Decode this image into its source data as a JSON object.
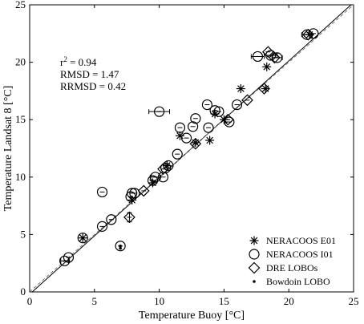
{
  "chart_data": {
    "type": "scatter",
    "xlabel": "Temperature Buoy [°C]",
    "ylabel": "Temperature Landsat 8 [°C]",
    "xlim": [
      0,
      25
    ],
    "ylim": [
      0,
      25
    ],
    "xticks": [
      0,
      5,
      10,
      15,
      20,
      25
    ],
    "yticks": [
      0,
      5,
      10,
      15,
      20,
      25
    ],
    "grid": false,
    "legend_position": "bottom-right",
    "stats": [
      "r² = 0.94",
      "RMSD = 1.47",
      "RRMSD = 0.42"
    ],
    "stats_parts": {
      "r2_prefix": "r",
      "r2_exp": "2",
      "r2_suffix": " = 0.94",
      "rmsd": "RMSD = 1.47",
      "rrmsd": "RRMSD = 0.42"
    },
    "lines": [
      {
        "kind": "fit",
        "style": "solid",
        "points": [
          [
            0,
            -0.2
          ],
          [
            25,
            25.2
          ]
        ]
      },
      {
        "kind": "one-to-one",
        "style": "dashed",
        "points": [
          [
            0,
            0
          ],
          [
            25,
            25
          ]
        ]
      }
    ],
    "series": [
      {
        "name": "NERACOOS E01",
        "marker": "asterisk",
        "points": [
          {
            "x": 4.1,
            "y": 4.7
          },
          {
            "x": 7.9,
            "y": 8.0
          },
          {
            "x": 9.5,
            "y": 9.5
          },
          {
            "x": 10.6,
            "y": 11.0
          },
          {
            "x": 11.6,
            "y": 13.6
          },
          {
            "x": 12.8,
            "y": 13.0
          },
          {
            "x": 13.9,
            "y": 13.2
          },
          {
            "x": 14.3,
            "y": 15.5
          },
          {
            "x": 15.0,
            "y": 15.0
          },
          {
            "x": 16.3,
            "y": 17.7
          },
          {
            "x": 18.2,
            "y": 17.7
          },
          {
            "x": 18.3,
            "y": 19.6
          },
          {
            "x": 21.6,
            "y": 22.4
          }
        ]
      },
      {
        "name": "NERACOOS I01",
        "marker": "circle",
        "points": [
          {
            "x": 2.7,
            "y": 2.7,
            "xerr": 0.3
          },
          {
            "x": 3.0,
            "y": 3.0
          },
          {
            "x": 4.1,
            "y": 4.7
          },
          {
            "x": 5.6,
            "y": 5.7
          },
          {
            "x": 5.6,
            "y": 8.7
          },
          {
            "x": 6.3,
            "y": 6.3
          },
          {
            "x": 7.0,
            "y": 4.0
          },
          {
            "x": 7.8,
            "y": 8.3
          },
          {
            "x": 7.9,
            "y": 8.6
          },
          {
            "x": 8.1,
            "y": 8.6
          },
          {
            "x": 9.5,
            "y": 9.7
          },
          {
            "x": 9.7,
            "y": 10.0,
            "xerr": 0.4
          },
          {
            "x": 10.0,
            "y": 15.7,
            "xerr": 0.8
          },
          {
            "x": 10.3,
            "y": 10.0
          },
          {
            "x": 10.5,
            "y": 10.8
          },
          {
            "x": 10.7,
            "y": 11.0
          },
          {
            "x": 11.4,
            "y": 12.0
          },
          {
            "x": 11.6,
            "y": 14.3
          },
          {
            "x": 12.1,
            "y": 13.4
          },
          {
            "x": 12.6,
            "y": 14.4
          },
          {
            "x": 12.8,
            "y": 15.1
          },
          {
            "x": 13.7,
            "y": 16.3
          },
          {
            "x": 13.8,
            "y": 14.3
          },
          {
            "x": 14.3,
            "y": 15.8
          },
          {
            "x": 14.6,
            "y": 15.7
          },
          {
            "x": 15.4,
            "y": 14.8
          },
          {
            "x": 16.0,
            "y": 16.3
          },
          {
            "x": 17.6,
            "y": 20.5,
            "xerr": 0.5
          },
          {
            "x": 18.6,
            "y": 20.6,
            "xerr": 0.5
          },
          {
            "x": 19.1,
            "y": 20.4,
            "xerr": 0.4
          },
          {
            "x": 21.4,
            "y": 22.4,
            "xerr": 0.4
          },
          {
            "x": 21.9,
            "y": 22.5
          }
        ]
      },
      {
        "name": "DRE LOBOs",
        "marker": "diamond",
        "points": [
          {
            "x": 7.7,
            "y": 6.5,
            "yerr": 0.4
          },
          {
            "x": 8.8,
            "y": 8.8
          },
          {
            "x": 10.3,
            "y": 10.7
          },
          {
            "x": 12.8,
            "y": 12.9
          },
          {
            "x": 15.3,
            "y": 15.0
          },
          {
            "x": 16.8,
            "y": 16.7
          },
          {
            "x": 18.1,
            "y": 17.7
          },
          {
            "x": 18.4,
            "y": 20.9
          },
          {
            "x": 18.9,
            "y": 20.4
          },
          {
            "x": 21.5,
            "y": 22.4
          }
        ]
      },
      {
        "name": "Bowdoin LOBO",
        "marker": "dot",
        "points": [
          {
            "x": 4.1,
            "y": 4.7
          },
          {
            "x": 7.0,
            "y": 4.0
          },
          {
            "x": 7.0,
            "y": 3.8
          }
        ]
      }
    ]
  }
}
